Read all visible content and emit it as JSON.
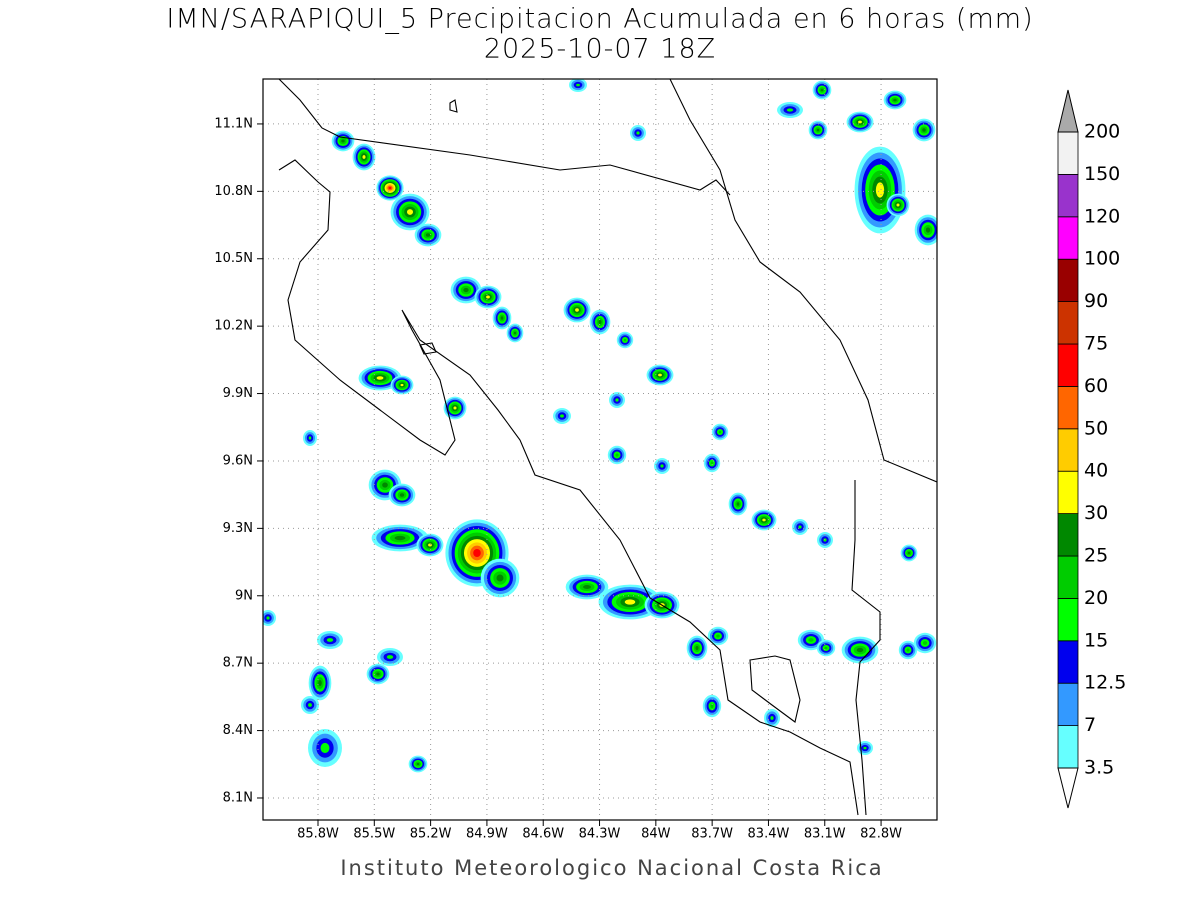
{
  "title": "IMN/SARAPIQUI_5 Precipitacion Acumulada en 6 horas (mm)",
  "subtitle": "2025-10-07 18Z",
  "map": {
    "xlim": [
      -86.093,
      -82.502
    ],
    "ylim": [
      8.002,
      11.3
    ],
    "xticks": [
      {
        "value": -85.8,
        "label": "85.8W"
      },
      {
        "value": -85.5,
        "label": "85.5W"
      },
      {
        "value": -85.2,
        "label": "85.2W"
      },
      {
        "value": -84.9,
        "label": "84.9W"
      },
      {
        "value": -84.6,
        "label": "84.6W"
      },
      {
        "value": -84.3,
        "label": "84.3W"
      },
      {
        "value": -84.0,
        "label": "84W"
      },
      {
        "value": -83.7,
        "label": "83.7W"
      },
      {
        "value": -83.4,
        "label": "83.4W"
      },
      {
        "value": -83.1,
        "label": "83.1W"
      },
      {
        "value": -82.8,
        "label": "82.8W"
      }
    ],
    "yticks": [
      {
        "value": 8.1,
        "label": "8.1N"
      },
      {
        "value": 8.4,
        "label": "8.4N"
      },
      {
        "value": 8.7,
        "label": "8.7N"
      },
      {
        "value": 9.0,
        "label": "9N"
      },
      {
        "value": 9.3,
        "label": "9.3N"
      },
      {
        "value": 9.6,
        "label": "9.6N"
      },
      {
        "value": 9.9,
        "label": "9.9N"
      },
      {
        "value": 10.2,
        "label": "10.2N"
      },
      {
        "value": 10.5,
        "label": "10.5N"
      },
      {
        "value": 10.8,
        "label": "10.8N"
      },
      {
        "value": 11.1,
        "label": "11.1N"
      }
    ]
  },
  "colorbar": {
    "levels": [
      3.5,
      7,
      12.5,
      15,
      20,
      25,
      30,
      40,
      50,
      60,
      75,
      90,
      100,
      120,
      150,
      200
    ],
    "colors": [
      "#66ffff",
      "#3399ff",
      "#0000ee",
      "#00ff00",
      "#00cc00",
      "#008800",
      "#ffff00",
      "#ffcc00",
      "#ff6600",
      "#ff0000",
      "#cc3300",
      "#990000",
      "#ff00ff",
      "#9933cc",
      "#f2f2f2"
    ],
    "under_color": "#ffffff",
    "over_color": "#aaaaaa"
  },
  "footer": "Instituto Meteorologico Nacional Costa Rica"
}
